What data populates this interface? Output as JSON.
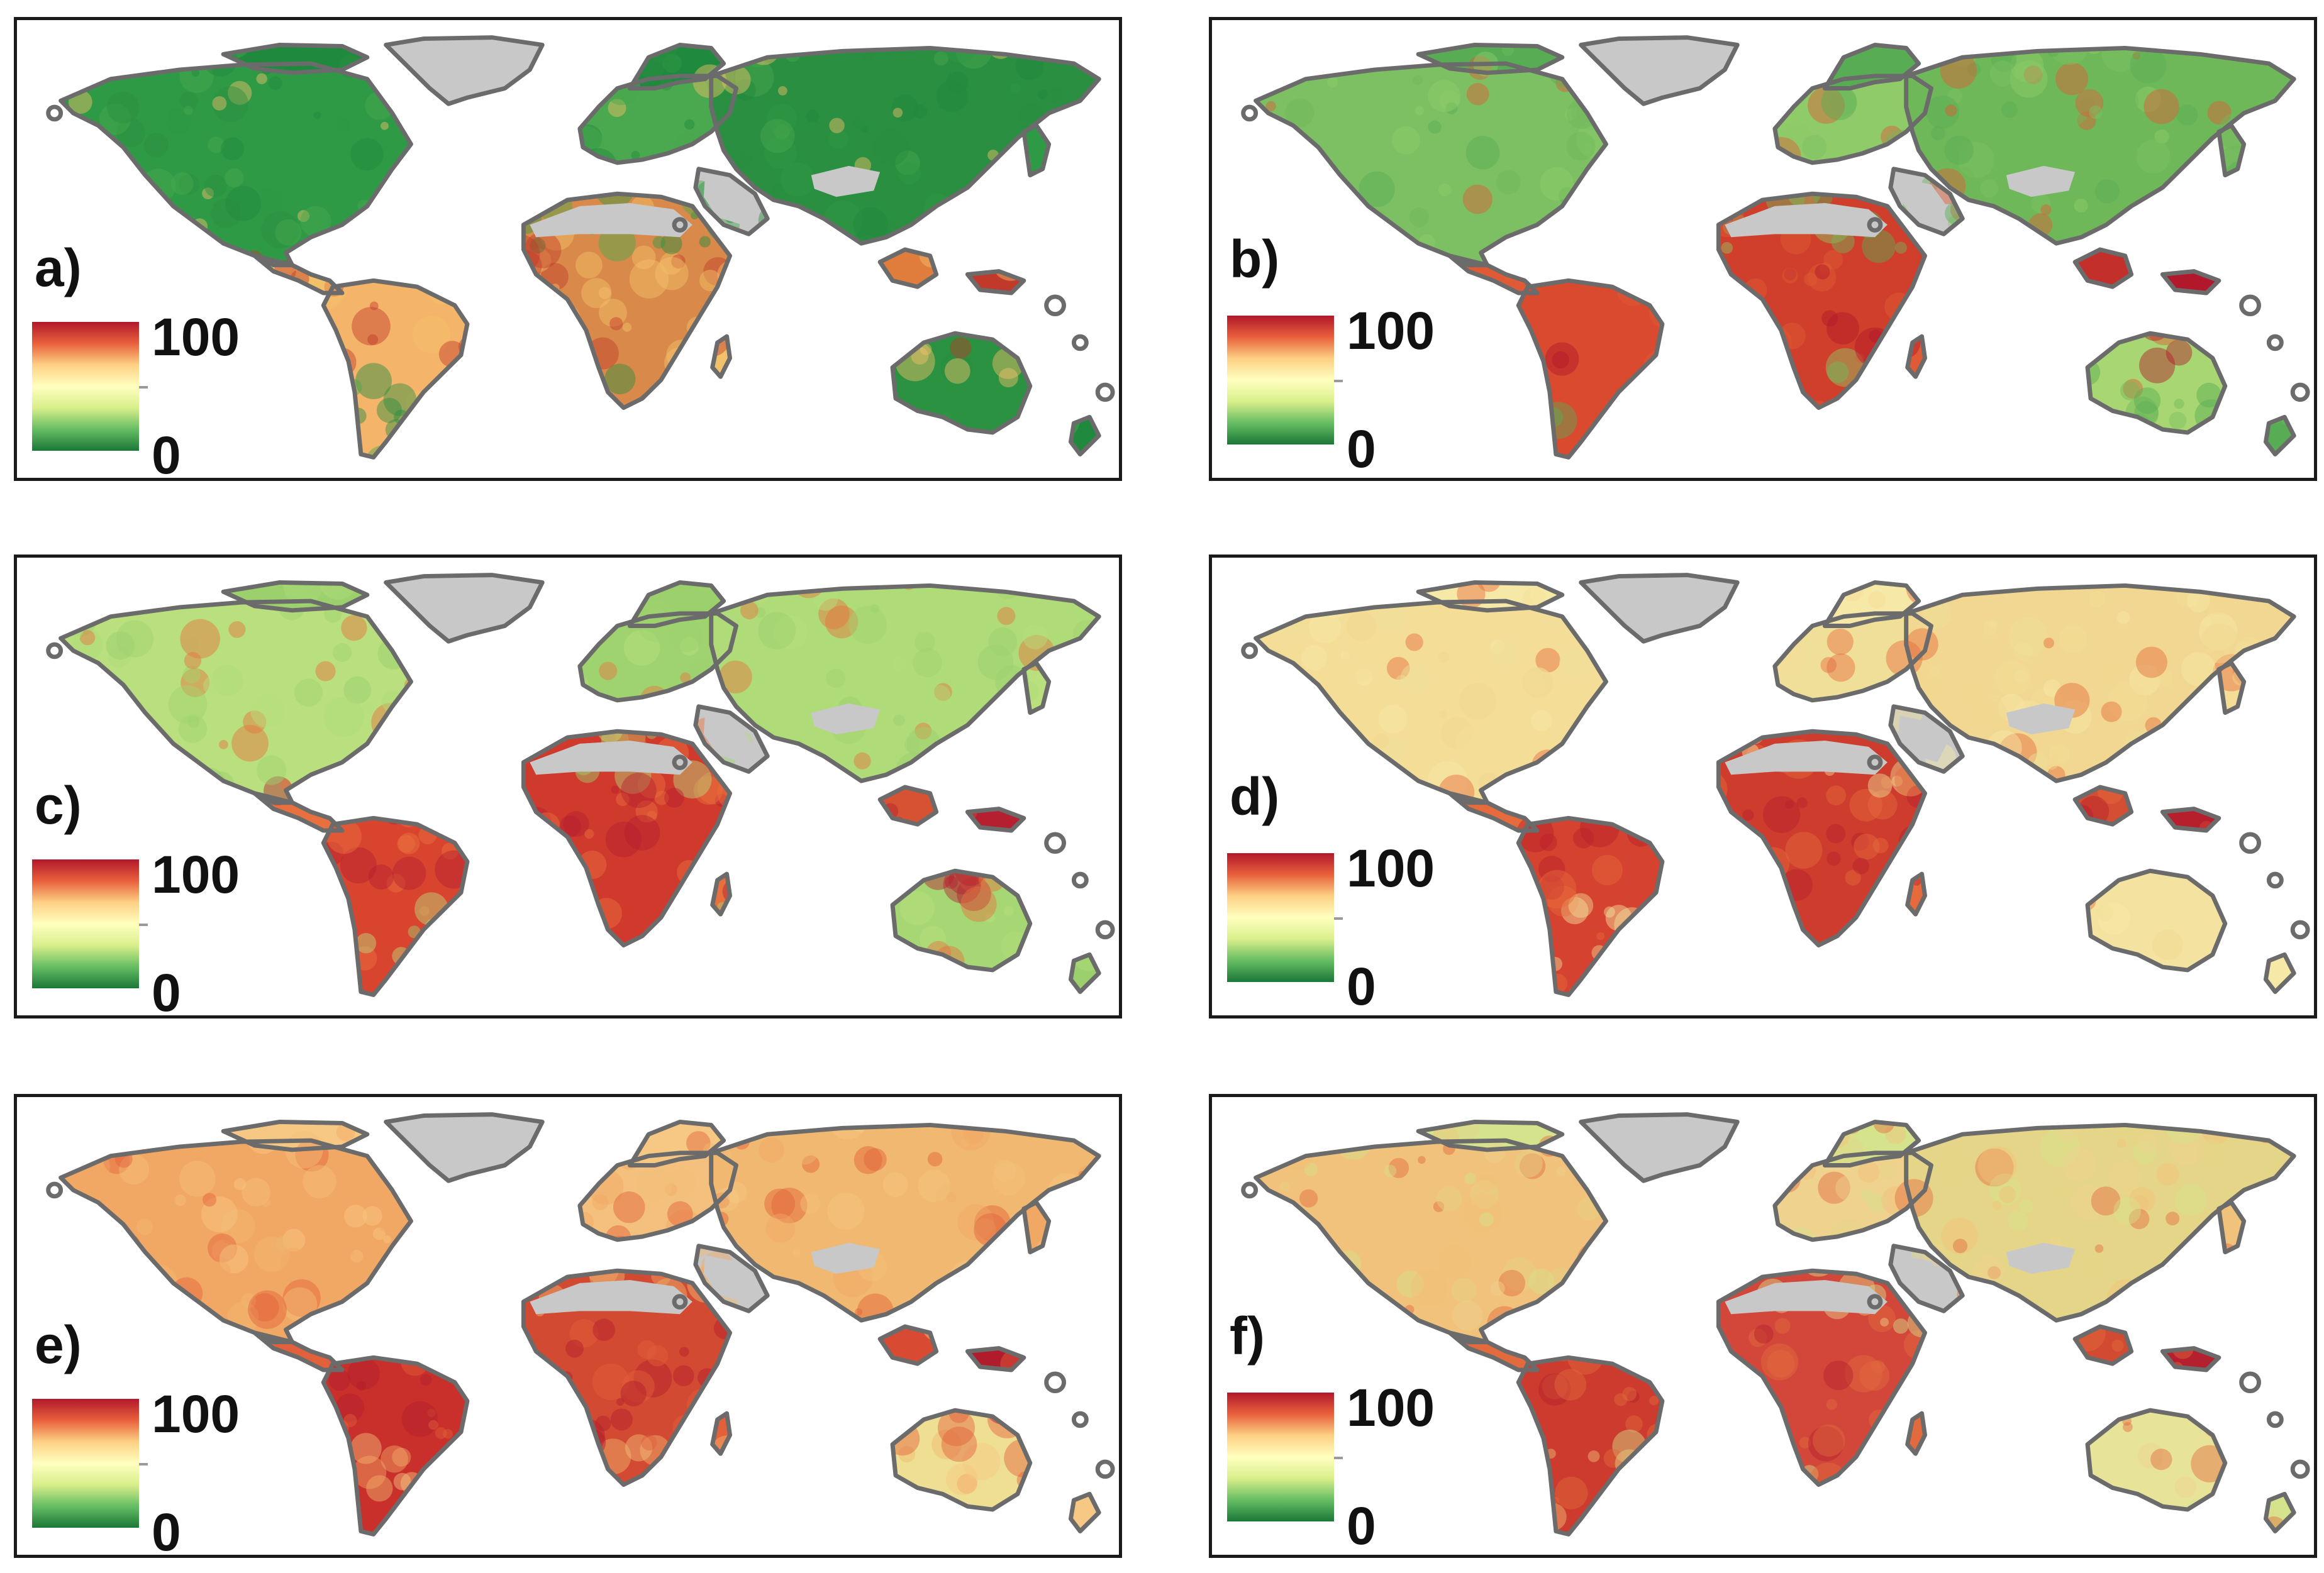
{
  "panels": [
    {
      "label": "a)",
      "scale_max": "100",
      "scale_min": "0",
      "palette": "green-dominant"
    },
    {
      "label": "b)",
      "scale_max": "100",
      "scale_min": "0",
      "palette": "green-tropics-red"
    },
    {
      "label": "c)",
      "scale_max": "100",
      "scale_min": "0",
      "palette": "light-green-tropics-red"
    },
    {
      "label": "d)",
      "scale_max": "100",
      "scale_min": "0",
      "palette": "yellow-tropics-red"
    },
    {
      "label": "e)",
      "scale_max": "100",
      "scale_min": "0",
      "palette": "orange-tropics-red"
    },
    {
      "label": "f)",
      "scale_max": "100",
      "scale_min": "0",
      "palette": "mixed-tropics-red"
    }
  ],
  "colors": {
    "scale_high": "#b2182b",
    "scale_mid": "#ffffbf",
    "scale_low": "#1a7837",
    "no_data": "#c8c8c8",
    "coastline": "#6b6b6b"
  }
}
